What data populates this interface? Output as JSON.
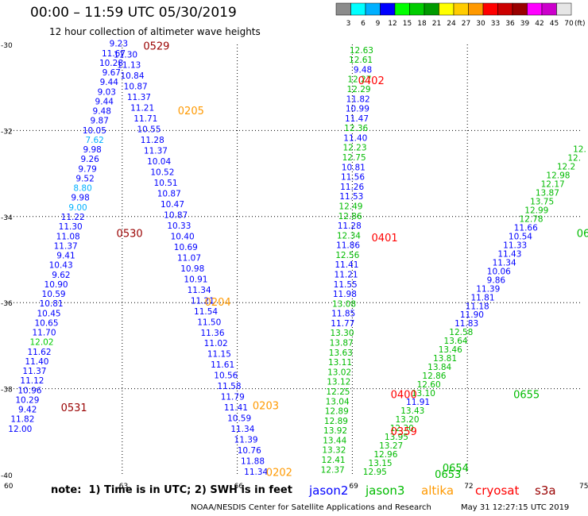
{
  "title": "00:00 – 11:59 UTC 05/30/2019",
  "subtitle": "12 hour collection of altimeter wave heights",
  "note": "note:  1) Time is in UTC; 2) SWH is in feet",
  "credit": "NOAA/NESDIS Center for Satellite Applications and Research",
  "timestamp": "May 31 12:27:15 UTC 2019",
  "legend": [
    {
      "name": "jason2",
      "color": "#0000ff"
    },
    {
      "name": "jason3",
      "color": "#00bb00"
    },
    {
      "name": "altika",
      "color": "#ff9900"
    },
    {
      "name": "cryosat",
      "color": "#ff0000"
    },
    {
      "name": "s3a",
      "color": "#990000"
    }
  ],
  "chart_data": {
    "type": "scatter",
    "xlim": [
      60,
      75
    ],
    "ylim": [
      -40,
      -30
    ],
    "x_ticks": [
      "60",
      "63",
      "66",
      "69",
      "72",
      "75"
    ],
    "y_ticks": [
      "-30",
      "-32",
      "-34",
      "-36",
      "-38",
      "-40"
    ],
    "grid": true,
    "colorbar": {
      "unit": "(ft)",
      "labels": [
        "3",
        "6",
        "9",
        "12",
        "15",
        "18",
        "21",
        "24",
        "27",
        "30",
        "33",
        "36",
        "39",
        "42",
        "45",
        "70"
      ],
      "colors": [
        "#8c8c8c",
        "#00ffff",
        "#00b0ff",
        "#0000ff",
        "#00ff00",
        "#00cc00",
        "#009900",
        "#ffff00",
        "#ffcc00",
        "#ff9900",
        "#ff0000",
        "#cc0000",
        "#990000",
        "#ff00ff",
        "#cc00cc",
        "#e6e6e6"
      ]
    },
    "tracks": [
      {
        "satellite": "s3a",
        "color": "#990000",
        "time_label": "0529",
        "time_lat": -30.05,
        "time_lon": 63.55,
        "start_lat": -30.05,
        "start_lon": 62.95,
        "end_lat": -39.0,
        "end_lon": 60.15,
        "values": [
          "9.23",
          "11.30",
          "11.67",
          "11.13",
          "10.28",
          "10.84",
          "9.67",
          "10.87",
          "9.44",
          "11.37",
          "9.03",
          "11.21",
          "9.44",
          "11.71",
          "9.48",
          "10.55",
          "9.87",
          "11.28",
          "10.05",
          "11.37",
          "7.62",
          "10.04",
          "9.98",
          "10.52",
          "9.26",
          "10.51",
          "9.79",
          "10.87",
          "9.52",
          "10.47",
          "8.80",
          "10.87",
          "9.98",
          "10.33",
          "9.00",
          "10.40",
          "11.22",
          "10.69",
          "11.30",
          "11.07",
          "11.08",
          "10.98",
          "11.37",
          "10.91",
          "9.41",
          "11.34",
          "10.43",
          "11.21",
          "9.62",
          "11.54",
          "10.90",
          "11.50",
          "10.59",
          "11.36",
          "10.81",
          "11.02",
          "10.45",
          "11.15",
          "10.65",
          "11.61",
          "11.70",
          "10.56",
          "12.02",
          "11.58",
          "11.62",
          "11.79",
          "11.40",
          "11.41",
          "11.37",
          "10.59",
          "11.12",
          "11.34",
          "10.96",
          "11.39",
          "10.29",
          "10.76",
          "9.42",
          "11.88",
          "11.82",
          "11.34",
          "12.00"
        ],
        "mixed": true
      },
      {
        "satellite": "altika",
        "color": "#ff9900",
        "time_label": "0205",
        "time_lat": -31.55,
        "time_lon": 64.45
      },
      {
        "satellite": "s3a",
        "color": "#990000",
        "time_label": "0530",
        "time_lat": -34.4,
        "time_lon": 62.85
      },
      {
        "satellite": "altika",
        "color": "#ff9900",
        "time_label": "0204",
        "time_lat": -36.0,
        "time_lon": 65.15
      },
      {
        "satellite": "s3a",
        "color": "#990000",
        "time_label": "0531",
        "time_lat": -38.45,
        "time_lon": 61.4
      },
      {
        "satellite": "altika",
        "color": "#ff9900",
        "time_label": "0203",
        "time_lat": -38.4,
        "time_lon": 66.4
      },
      {
        "satellite": "altika",
        "color": "#ff9900",
        "time_label": "0202",
        "time_lat": -39.95,
        "time_lon": 66.75
      },
      {
        "satellite": "cryosat",
        "color": "#ff0000",
        "time_label": "0402",
        "time_lat": -30.85,
        "time_lon": 69.15
      },
      {
        "satellite": "cryosat",
        "color": "#ff0000",
        "time_label": "0401",
        "time_lat": -34.5,
        "time_lon": 69.5
      },
      {
        "satellite": "cryosat",
        "color": "#ff0000",
        "time_label": "0400",
        "time_lat": -38.15,
        "time_lon": 70.0
      },
      {
        "satellite": "cryosat",
        "color": "#ff0000",
        "time_label": "0359",
        "time_lat": -39.0,
        "time_lon": 70.0
      },
      {
        "satellite": "jason3",
        "color": "#00bb00",
        "time_label": "0655",
        "time_lat": -38.15,
        "time_lon": 73.2
      },
      {
        "satellite": "jason3",
        "color": "#00bb00",
        "time_label": "0654",
        "time_lat": -39.85,
        "time_lon": 71.35
      },
      {
        "satellite": "jason3",
        "color": "#00bb00",
        "time_label": "0653",
        "time_lat": -40.0,
        "time_lon": 71.15
      },
      {
        "satellite": "jason3",
        "color": "#00bb00",
        "time_label": "06",
        "time_lat": -34.4,
        "time_lon": 74.85
      }
    ],
    "series": [
      {
        "name": "jason2-cryosat-column",
        "lon_start": 69.55,
        "lon_end": 68.8,
        "lat_start": -30.2,
        "lat_end": -39.95,
        "points": [
          {
            "v": "12.63",
            "c": "#00bb00"
          },
          {
            "v": "12.61",
            "c": "#00bb00"
          },
          {
            "v": "9.48",
            "c": "#0000ff"
          },
          {
            "v": "12.27",
            "c": "#00bb00"
          },
          {
            "v": "12.29",
            "c": "#00bb00"
          },
          {
            "v": "11.82",
            "c": "#0000ff"
          },
          {
            "v": "10.99",
            "c": "#0000ff"
          },
          {
            "v": "11.47",
            "c": "#0000ff"
          },
          {
            "v": "12.36",
            "c": "#00bb00"
          },
          {
            "v": "11.40",
            "c": "#0000ff"
          },
          {
            "v": "12.23",
            "c": "#00bb00"
          },
          {
            "v": "12.75",
            "c": "#00bb00"
          },
          {
            "v": "10.81",
            "c": "#0000ff"
          },
          {
            "v": "11.56",
            "c": "#0000ff"
          },
          {
            "v": "11.26",
            "c": "#0000ff"
          },
          {
            "v": "11.53",
            "c": "#0000ff"
          },
          {
            "v": "12.49",
            "c": "#00bb00"
          },
          {
            "v": "12.86",
            "c": "#00bb00"
          },
          {
            "v": "11.28",
            "c": "#0000ff"
          },
          {
            "v": "12.34",
            "c": "#00bb00"
          },
          {
            "v": "11.86",
            "c": "#0000ff"
          },
          {
            "v": "12.56",
            "c": "#00bb00"
          },
          {
            "v": "11.41",
            "c": "#0000ff"
          },
          {
            "v": "11.21",
            "c": "#0000ff"
          },
          {
            "v": "11.55",
            "c": "#0000ff"
          },
          {
            "v": "11.98",
            "c": "#0000ff"
          },
          {
            "v": "13.08",
            "c": "#00bb00"
          },
          {
            "v": "11.85",
            "c": "#0000ff"
          },
          {
            "v": "11.77",
            "c": "#0000ff"
          },
          {
            "v": "13.30",
            "c": "#00bb00"
          },
          {
            "v": "13.87",
            "c": "#00bb00"
          },
          {
            "v": "13.63",
            "c": "#00bb00"
          },
          {
            "v": "13.11",
            "c": "#00bb00"
          },
          {
            "v": "13.02",
            "c": "#00bb00"
          },
          {
            "v": "13.12",
            "c": "#00bb00"
          },
          {
            "v": "12.25",
            "c": "#00bb00"
          },
          {
            "v": "13.04",
            "c": "#00bb00"
          },
          {
            "v": "12.89",
            "c": "#00bb00"
          },
          {
            "v": "12.89",
            "c": "#00bb00"
          },
          {
            "v": "13.92",
            "c": "#00bb00"
          },
          {
            "v": "13.44",
            "c": "#00bb00"
          },
          {
            "v": "13.32",
            "c": "#00bb00"
          },
          {
            "v": "12.41",
            "c": "#00bb00"
          },
          {
            "v": "12.37",
            "c": "#00bb00"
          }
        ]
      },
      {
        "name": "jason3-diagonal",
        "lon_start": 75.1,
        "lon_end": 69.9,
        "lat_start": -32.5,
        "lat_end": -40.0,
        "points": [
          {
            "v": "12.",
            "c": "#00bb00"
          },
          {
            "v": "12.",
            "c": "#00bb00"
          },
          {
            "v": "12.2",
            "c": "#00bb00"
          },
          {
            "v": "12.98",
            "c": "#00bb00"
          },
          {
            "v": "12.17",
            "c": "#00bb00"
          },
          {
            "v": "13.87",
            "c": "#00bb00"
          },
          {
            "v": "13.75",
            "c": "#00bb00"
          },
          {
            "v": "12.99",
            "c": "#00bb00"
          },
          {
            "v": "12.78",
            "c": "#00bb00"
          },
          {
            "v": "11.66",
            "c": "#0000ff"
          },
          {
            "v": "10.54",
            "c": "#0000ff"
          },
          {
            "v": "11.33",
            "c": "#0000ff"
          },
          {
            "v": "11.43",
            "c": "#0000ff"
          },
          {
            "v": "11.34",
            "c": "#0000ff"
          },
          {
            "v": "10.06",
            "c": "#0000ff"
          },
          {
            "v": "9.86",
            "c": "#0000ff"
          },
          {
            "v": "11.39",
            "c": "#0000ff"
          },
          {
            "v": "11.81",
            "c": "#0000ff"
          },
          {
            "v": "11.18",
            "c": "#0000ff"
          },
          {
            "v": "11.90",
            "c": "#0000ff"
          },
          {
            "v": "11.83",
            "c": "#0000ff"
          },
          {
            "v": "12.58",
            "c": "#00bb00"
          },
          {
            "v": "13.64",
            "c": "#00bb00"
          },
          {
            "v": "13.46",
            "c": "#00bb00"
          },
          {
            "v": "13.81",
            "c": "#00bb00"
          },
          {
            "v": "13.84",
            "c": "#00bb00"
          },
          {
            "v": "12.86",
            "c": "#00bb00"
          },
          {
            "v": "12.60",
            "c": "#00bb00"
          },
          {
            "v": "13.10",
            "c": "#00bb00"
          },
          {
            "v": "11.91",
            "c": "#0000ff"
          },
          {
            "v": "13.43",
            "c": "#00bb00"
          },
          {
            "v": "13.20",
            "c": "#00bb00"
          },
          {
            "v": "12.30",
            "c": "#00bb00"
          },
          {
            "v": "13.95",
            "c": "#00bb00"
          },
          {
            "v": "13.27",
            "c": "#00bb00"
          },
          {
            "v": "12.96",
            "c": "#00bb00"
          },
          {
            "v": "13.15",
            "c": "#00bb00"
          },
          {
            "v": "12.95",
            "c": "#00bb00"
          }
        ]
      }
    ]
  }
}
